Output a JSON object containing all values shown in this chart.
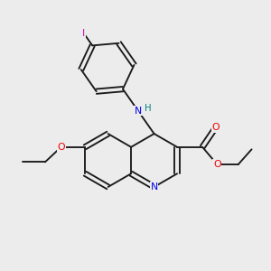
{
  "background_color": "#ececec",
  "bond_color": "#1a1a1a",
  "atom_colors": {
    "N": "#0000ee",
    "O": "#ee0000",
    "I": "#cc00cc",
    "H_label": "#008080",
    "C": "#1a1a1a"
  },
  "figsize": [
    3.0,
    3.0
  ],
  "dpi": 100
}
